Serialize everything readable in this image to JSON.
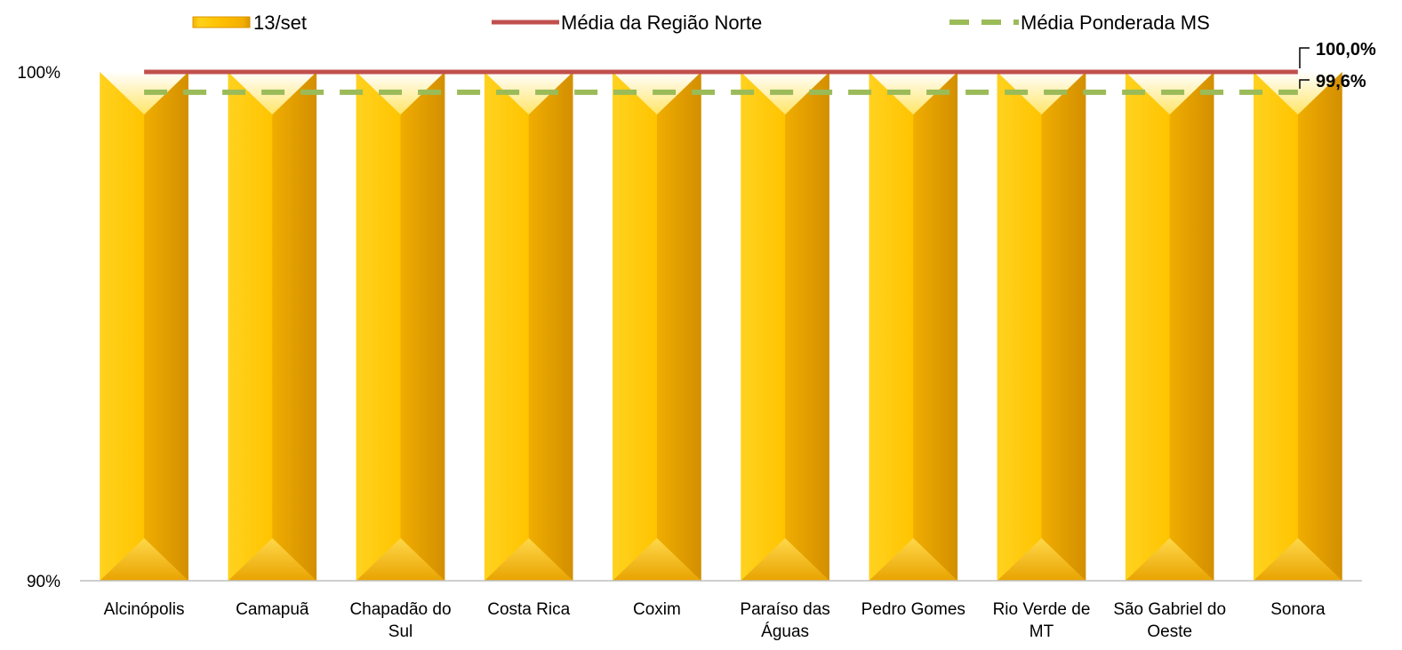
{
  "chart_data": {
    "type": "bar",
    "categories": [
      [
        "Alcinópolis"
      ],
      [
        "Camapuã"
      ],
      [
        "Chapadão do",
        "Sul"
      ],
      [
        "Costa Rica"
      ],
      [
        "Coxim"
      ],
      [
        "Paraíso das",
        "Águas"
      ],
      [
        "Pedro Gomes"
      ],
      [
        "Rio Verde de",
        "MT"
      ],
      [
        "São Gabriel do",
        "Oeste"
      ],
      [
        "Sonora"
      ]
    ],
    "series": [
      {
        "name": "13/set",
        "type": "bar",
        "color": "#FFC000",
        "values": [
          100,
          100,
          100,
          100,
          100,
          100,
          100,
          100,
          100,
          100
        ]
      },
      {
        "name": "Média da Região Norte",
        "type": "line",
        "style": "solid",
        "color": "#C0504D",
        "value": 100.0,
        "end_label": "100,0%"
      },
      {
        "name": "Média Ponderada MS",
        "type": "line",
        "style": "dashed",
        "color": "#9BBB59",
        "value": 99.6,
        "end_label": "99,6%"
      }
    ],
    "ylim": [
      90,
      100
    ],
    "yticks": [
      {
        "value": 90,
        "label": "90%"
      },
      {
        "value": 100,
        "label": "100%"
      }
    ],
    "grid": false,
    "legend_position": "top"
  }
}
